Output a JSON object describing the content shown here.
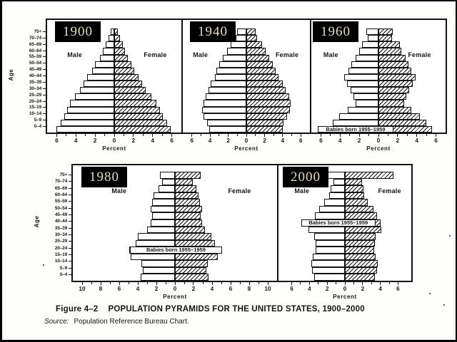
{
  "figure": {
    "caption_label": "Figure 4–2",
    "caption_title": "POPULATION PYRAMIDS FOR THE UNITED STATES, 1900–2000",
    "source_label": "Source:",
    "source_text": "Population Reference Bureau Chart."
  },
  "labels": {
    "age_axis": "Age",
    "male": "Male",
    "female": "Female",
    "percent": "Percent",
    "annotation": "Babies born 1955–1959"
  },
  "colors": {
    "ink": "#151515",
    "badge_background": "#000000",
    "badge_text": "#e7dcb5",
    "paper": "#ffffff",
    "male_fill": "#ffffff",
    "female_fill": "black-diagonal-hatch-on-white"
  },
  "age_groups_top_to_bottom": [
    "75+",
    "70–74",
    "65–69",
    "60–64",
    "55–59",
    "50–54",
    "45–49",
    "40–44",
    "35–39",
    "30–34",
    "25–29",
    "20–24",
    "15–19",
    "10–14",
    "5–9",
    "0–4"
  ],
  "chart_data": [
    {
      "type": "bar",
      "subtype": "population_pyramid",
      "year": "1900",
      "xlabel": "Percent",
      "unit": "% of total population",
      "x_tick_labels": [
        "6",
        "4",
        "2",
        "0",
        "2",
        "4",
        "6"
      ],
      "x_tick_values": [
        -6,
        -4,
        -2,
        0,
        2,
        4,
        6
      ],
      "x_half_range": 7,
      "age_groups_top_to_bottom": [
        "75+",
        "70–74",
        "65–69",
        "60–64",
        "55–59",
        "50–54",
        "45–49",
        "40–44",
        "35–39",
        "30–34",
        "25–29",
        "20–24",
        "15–19",
        "10–14",
        "5–9",
        "0–4"
      ],
      "series": [
        {
          "name": "Male",
          "side": "left",
          "values": [
            0.4,
            0.6,
            0.9,
            1.2,
            1.5,
            2.0,
            2.3,
            2.8,
            3.2,
            3.6,
            4.1,
            4.6,
            4.9,
            5.2,
            5.6,
            6.0
          ]
        },
        {
          "name": "Female",
          "side": "right",
          "values": [
            0.4,
            0.6,
            0.9,
            1.1,
            1.4,
            1.8,
            2.1,
            2.5,
            2.9,
            3.3,
            3.9,
            4.4,
            4.8,
            5.1,
            5.5,
            5.9
          ]
        }
      ],
      "annotation": null
    },
    {
      "type": "bar",
      "subtype": "population_pyramid",
      "year": "1940",
      "xlabel": "Percent",
      "unit": "% of total population",
      "x_tick_labels": [
        "6",
        "4",
        "2",
        "0",
        "2",
        "4",
        "6"
      ],
      "x_tick_values": [
        -6,
        -4,
        -2,
        0,
        2,
        4,
        6
      ],
      "x_half_range": 7,
      "age_groups_top_to_bottom": [
        "75+",
        "70–74",
        "65–69",
        "60–64",
        "55–59",
        "50–54",
        "45–49",
        "40–44",
        "35–39",
        "30–34",
        "25–29",
        "20–24",
        "15–19",
        "10–14",
        "5–9",
        "0–4"
      ],
      "series": [
        {
          "name": "Male",
          "side": "left",
          "values": [
            1.0,
            1.2,
            1.7,
            2.1,
            2.6,
            3.0,
            3.3,
            3.5,
            3.9,
            4.2,
            4.5,
            4.7,
            4.9,
            4.7,
            4.3,
            4.1
          ]
        },
        {
          "name": "Female",
          "side": "right",
          "values": [
            1.0,
            1.2,
            1.7,
            2.1,
            2.5,
            2.9,
            3.2,
            3.5,
            4.0,
            4.3,
            4.7,
            4.9,
            4.8,
            4.5,
            4.1,
            4.0
          ]
        }
      ],
      "annotation": null
    },
    {
      "type": "bar",
      "subtype": "population_pyramid",
      "year": "1960",
      "xlabel": "Percent",
      "unit": "% of total population",
      "x_tick_labels": [
        "6",
        "4",
        "2",
        "0",
        "2",
        "4",
        "6"
      ],
      "x_tick_values": [
        -6,
        -4,
        -2,
        0,
        2,
        4,
        6
      ],
      "x_half_range": 7,
      "age_groups_top_to_bottom": [
        "75+",
        "70–74",
        "65–69",
        "60–64",
        "55–59",
        "50–54",
        "45–49",
        "40–44",
        "35–39",
        "30–34",
        "25–29",
        "20–24",
        "15–19",
        "10–14",
        "5–9",
        "0–4"
      ],
      "series": [
        {
          "name": "Male",
          "side": "left",
          "values": [
            1.3,
            1.1,
            1.7,
            2.0,
            2.4,
            2.8,
            3.1,
            3.6,
            3.3,
            2.9,
            2.6,
            2.4,
            3.2,
            4.1,
            4.8,
            5.4
          ]
        },
        {
          "name": "Female",
          "side": "right",
          "values": [
            1.5,
            1.4,
            2.2,
            2.4,
            2.8,
            3.1,
            3.4,
            3.9,
            3.6,
            3.2,
            2.9,
            2.7,
            3.4,
            4.3,
            5.0,
            5.6
          ]
        }
      ],
      "annotation": {
        "text": "Babies born 1955–1959",
        "age_group": "0–4"
      }
    },
    {
      "type": "bar",
      "subtype": "population_pyramid",
      "year": "1980",
      "xlabel": "Percent",
      "unit": "% of total population",
      "x_tick_labels": [
        "10",
        "8",
        "6",
        "4",
        "2",
        "0",
        "2",
        "4",
        "6",
        "8",
        "10"
      ],
      "x_tick_values": [
        -10,
        -8,
        -6,
        -4,
        -2,
        0,
        2,
        4,
        6,
        8,
        10
      ],
      "x_half_range": 11,
      "age_groups_top_to_bottom": [
        "75+",
        "70–74",
        "65–69",
        "60–64",
        "55–59",
        "50–54",
        "45–49",
        "40–44",
        "35–39",
        "30–34",
        "25–29",
        "20–24",
        "15–19",
        "10–14",
        "5–9",
        "0–4"
      ],
      "series": [
        {
          "name": "Male",
          "side": "left",
          "values": [
            1.6,
            1.4,
            1.8,
            2.3,
            2.5,
            2.6,
            2.5,
            2.6,
            3.0,
            4.0,
            4.2,
            4.9,
            4.8,
            3.6,
            3.5,
            3.7
          ]
        },
        {
          "name": "Female",
          "side": "right",
          "values": [
            2.8,
            1.9,
            2.3,
            2.5,
            2.7,
            2.9,
            2.8,
            2.9,
            3.2,
            3.9,
            4.3,
            4.8,
            4.6,
            3.5,
            3.4,
            3.6
          ]
        }
      ],
      "annotation": {
        "text": "Babies born 1955–1959",
        "age_group": "20–24"
      }
    },
    {
      "type": "bar",
      "subtype": "population_pyramid",
      "year": "2000",
      "xlabel": "Percent",
      "unit": "% of total population",
      "x_tick_labels": [
        "6",
        "4",
        "2",
        "0",
        "2",
        "4",
        "6"
      ],
      "x_tick_values": [
        -6,
        -4,
        -2,
        0,
        2,
        4,
        6
      ],
      "x_half_range": 7.5,
      "age_groups_top_to_bottom": [
        "75+",
        "70–74",
        "65–69",
        "60–64",
        "55–59",
        "50–54",
        "45–49",
        "40–44",
        "35–39",
        "30–34",
        "25–29",
        "20–24",
        "15–19",
        "10–14",
        "5–9",
        "0–4"
      ],
      "series": [
        {
          "name": "Male",
          "side": "left",
          "values": [
            2.4,
            1.3,
            1.6,
            1.8,
            2.3,
            2.9,
            3.4,
            3.9,
            4.1,
            3.5,
            3.3,
            3.3,
            3.6,
            3.8,
            3.7,
            3.5
          ]
        },
        {
          "name": "Female",
          "side": "right",
          "values": [
            5.5,
            1.9,
            2.1,
            2.2,
            2.6,
            3.2,
            3.6,
            4.0,
            4.1,
            3.5,
            3.4,
            3.3,
            3.5,
            3.7,
            3.6,
            3.4
          ]
        }
      ],
      "annotation": {
        "text": "Babies born 1955–1959",
        "age_group": "40–44"
      }
    }
  ]
}
